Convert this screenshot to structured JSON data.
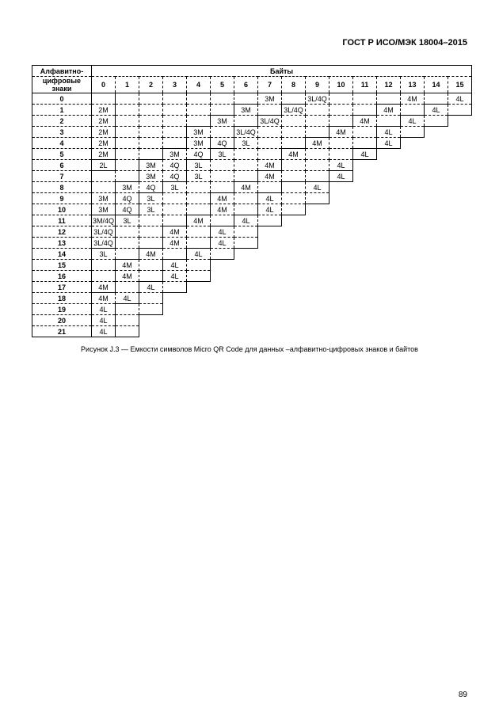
{
  "doc_header": "ГОСТ Р ИСО/МЭК 18004–2015",
  "row_header_top": "Алфавитно-",
  "row_header_bottom": "цифровые знаки",
  "bytes_header": "Байты",
  "col_labels": [
    "0",
    "1",
    "2",
    "3",
    "4",
    "5",
    "6",
    "7",
    "8",
    "9",
    "10",
    "11",
    "12",
    "13",
    "14",
    "15"
  ],
  "row_labels": [
    "0",
    "1",
    "2",
    "3",
    "4",
    "5",
    "6",
    "7",
    "8",
    "9",
    "10",
    "11",
    "12",
    "13",
    "14",
    "15",
    "16",
    "17",
    "18",
    "19",
    "20",
    "21"
  ],
  "rows": [
    {
      "len": 16,
      "cells": [
        "",
        "",
        "",
        "",
        "",
        "",
        "",
        "3M",
        "",
        "3L/4Q",
        "",
        "",
        "",
        "4M",
        "",
        "4L"
      ]
    },
    {
      "len": 16,
      "cells": [
        "2M",
        "",
        "",
        "",
        "",
        "",
        "3M",
        "",
        "3L/4Q",
        "",
        "",
        "",
        "4M",
        "",
        "4L",
        ""
      ]
    },
    {
      "len": 15,
      "cells": [
        "2M",
        "",
        "",
        "",
        "",
        "3M",
        "",
        "3L/4Q",
        "",
        "",
        "",
        "4M",
        "",
        "4L",
        ""
      ]
    },
    {
      "len": 14,
      "cells": [
        "2M",
        "",
        "",
        "",
        "3M",
        "",
        "3L/4Q",
        "",
        "",
        "",
        "4M",
        "",
        "4L",
        ""
      ]
    },
    {
      "len": 13,
      "cells": [
        "2M",
        "",
        "",
        "",
        "3M",
        "4Q",
        "3L",
        "",
        "",
        "4M",
        "",
        "",
        "4L"
      ]
    },
    {
      "len": 12,
      "cells": [
        "2M",
        "",
        "",
        "3M",
        "4Q",
        "3L",
        "",
        "",
        "4M",
        "",
        "",
        "4L"
      ]
    },
    {
      "len": 11,
      "cells": [
        "2L",
        "",
        "3M",
        "4Q",
        "3L",
        "",
        "",
        "4M",
        "",
        "",
        "4L"
      ]
    },
    {
      "len": 11,
      "cells": [
        "",
        "",
        "3M",
        "4Q",
        "3L",
        "",
        "",
        "4M",
        "",
        "",
        "4L"
      ]
    },
    {
      "len": 10,
      "cells": [
        "",
        "3M",
        "4Q",
        "3L",
        "",
        "",
        "4M",
        "",
        "",
        "4L"
      ]
    },
    {
      "len": 10,
      "cells": [
        "3M",
        "4Q",
        "3L",
        "",
        "",
        "4M",
        "",
        "4L",
        "",
        ""
      ]
    },
    {
      "len": 9,
      "cells": [
        "3M",
        "4Q",
        "3L",
        "",
        "",
        "4M",
        "",
        "4L",
        ""
      ]
    },
    {
      "len": 8,
      "cells": [
        "3M/4Q",
        "3L",
        "",
        "",
        "4M",
        "",
        "4L",
        ""
      ]
    },
    {
      "len": 7,
      "cells": [
        "3L/4Q",
        "",
        "",
        "4M",
        "",
        "4L",
        ""
      ]
    },
    {
      "len": 7,
      "cells": [
        "3L/4Q",
        "",
        "",
        "4M",
        "",
        "4L",
        ""
      ]
    },
    {
      "len": 6,
      "cells": [
        "3L",
        "",
        "4M",
        "",
        "4L",
        ""
      ]
    },
    {
      "len": 5,
      "cells": [
        "",
        "4M",
        "",
        "4L",
        ""
      ]
    },
    {
      "len": 5,
      "cells": [
        "",
        "4M",
        "",
        "4L",
        ""
      ]
    },
    {
      "len": 4,
      "cells": [
        "4M",
        "",
        "4L",
        ""
      ]
    },
    {
      "len": 3,
      "cells": [
        "4M",
        "4L",
        ""
      ]
    },
    {
      "len": 3,
      "cells": [
        "4L",
        "",
        ""
      ]
    },
    {
      "len": 2,
      "cells": [
        "4L",
        ""
      ]
    },
    {
      "len": 2,
      "cells": [
        "4L",
        ""
      ]
    }
  ],
  "contours": {
    "4L": [
      [
        0,
        16
      ],
      [
        1,
        15
      ],
      [
        1,
        14
      ],
      [
        2,
        14
      ],
      [
        2,
        13
      ],
      [
        3,
        13
      ],
      [
        3,
        12
      ],
      [
        5,
        12
      ],
      [
        5,
        11
      ],
      [
        7,
        11
      ],
      [
        7,
        10
      ],
      [
        8,
        10
      ],
      [
        8,
        8
      ],
      [
        9,
        8
      ],
      [
        9,
        7
      ],
      [
        11,
        7
      ],
      [
        11,
        6
      ],
      [
        12,
        6
      ],
      [
        12,
        5
      ],
      [
        14,
        5
      ],
      [
        14,
        4
      ],
      [
        15,
        4
      ],
      [
        15,
        3
      ],
      [
        17,
        3
      ],
      [
        17,
        2
      ],
      [
        19,
        2
      ],
      [
        19,
        1
      ],
      [
        22,
        1
      ],
      [
        22,
        0
      ]
    ],
    "4M": [
      [
        0,
        14
      ],
      [
        1,
        13
      ],
      [
        1,
        12
      ],
      [
        2,
        12
      ],
      [
        2,
        11
      ],
      [
        3,
        11
      ],
      [
        3,
        10
      ],
      [
        4,
        10
      ],
      [
        4,
        9
      ],
      [
        5,
        9
      ],
      [
        5,
        8
      ],
      [
        7,
        8
      ],
      [
        7,
        7
      ],
      [
        8,
        7
      ],
      [
        8,
        6
      ],
      [
        9,
        6
      ],
      [
        9,
        5
      ],
      [
        11,
        5
      ],
      [
        11,
        4
      ],
      [
        12,
        4
      ],
      [
        12,
        3
      ],
      [
        14,
        3
      ],
      [
        14,
        2
      ],
      [
        15,
        2
      ],
      [
        15,
        1
      ],
      [
        18,
        1
      ],
      [
        18,
        0
      ]
    ],
    "3L4Q": [
      [
        0,
        10
      ],
      [
        1,
        9
      ],
      [
        1,
        8
      ],
      [
        2,
        8
      ],
      [
        2,
        7
      ],
      [
        3,
        7
      ],
      [
        3,
        6
      ],
      [
        4,
        6
      ],
      [
        5,
        6
      ],
      [
        5,
        5
      ],
      [
        6,
        5
      ],
      [
        6,
        4
      ],
      [
        8,
        4
      ],
      [
        8,
        3
      ],
      [
        9,
        3
      ],
      [
        9,
        2
      ],
      [
        11,
        2
      ],
      [
        11,
        1
      ],
      [
        12,
        1
      ],
      [
        14,
        1
      ],
      [
        14,
        0
      ]
    ],
    "4Q": [
      [
        4,
        5
      ],
      [
        6,
        5
      ],
      [
        6,
        4
      ],
      [
        8,
        4
      ],
      [
        8,
        3
      ],
      [
        9,
        3
      ],
      [
        9,
        2
      ],
      [
        11,
        2
      ],
      [
        11,
        1
      ]
    ],
    "3M": [
      [
        0,
        8
      ],
      [
        1,
        7
      ],
      [
        1,
        6
      ],
      [
        2,
        6
      ],
      [
        2,
        5
      ],
      [
        3,
        5
      ],
      [
        3,
        4
      ],
      [
        4,
        4
      ],
      [
        5,
        4
      ],
      [
        5,
        3
      ],
      [
        6,
        3
      ],
      [
        6,
        2
      ],
      [
        8,
        2
      ],
      [
        8,
        1
      ],
      [
        9,
        1
      ],
      [
        11,
        1
      ],
      [
        11,
        0
      ]
    ],
    "2M": [
      [
        0,
        1
      ],
      [
        6,
        1
      ],
      [
        6,
        0
      ]
    ],
    "2L": [
      [
        6,
        1
      ],
      [
        7,
        1
      ],
      [
        7,
        0
      ]
    ]
  },
  "caption": "Рисунок J.3 — Емкости символов Micro QR Code для данных –алфавитно-цифровых знаков и байтов",
  "page_num": "89"
}
